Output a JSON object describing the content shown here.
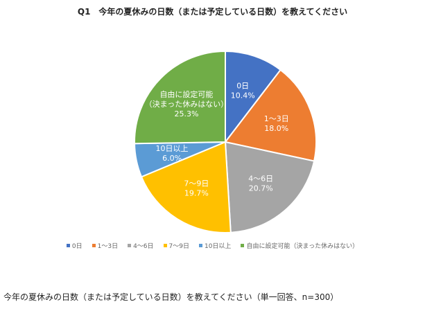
{
  "chart_data": {
    "type": "pie",
    "title": "Q1　今年の夏休みの日数（または予定している日数）を教えてください",
    "categories": [
      "0日",
      "1～3日",
      "4～6日",
      "7～9日",
      "10日以上",
      "自由に設定可能（決まった休みはない）"
    ],
    "slice_labels": [
      [
        "0日"
      ],
      [
        "1～3日"
      ],
      [
        "4～6日"
      ],
      [
        "7～9日"
      ],
      [
        "10日以上"
      ],
      [
        "自由に設定可能",
        "（決まった休みはない）"
      ]
    ],
    "values": [
      10.4,
      18.0,
      20.7,
      19.7,
      6.0,
      25.3
    ],
    "value_labels": [
      "10.4%",
      "18.0%",
      "20.7%",
      "19.7%",
      "6.0%",
      "25.3%"
    ],
    "colors": [
      "#4472c4",
      "#ed7d31",
      "#a5a5a5",
      "#ffc000",
      "#5b9bd5",
      "#70ad47"
    ],
    "legend_position": "bottom"
  },
  "footnote": "今年の夏休みの日数（または予定している日数）を教えてください（単一回答、n=300）"
}
